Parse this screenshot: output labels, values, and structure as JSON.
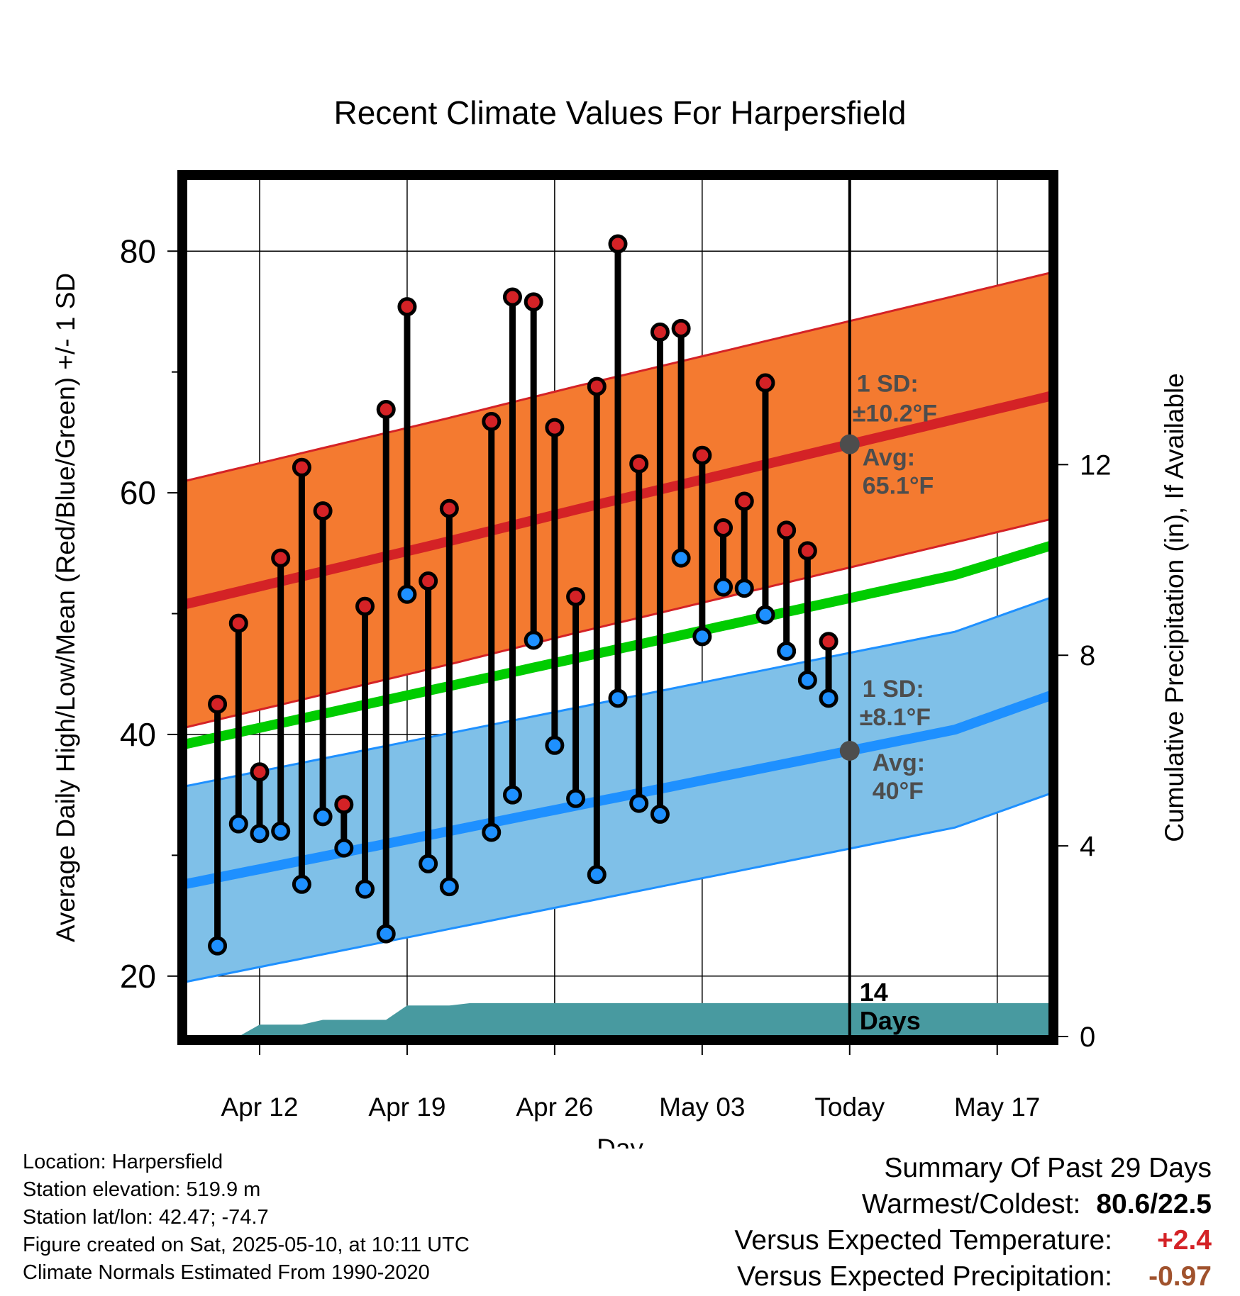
{
  "chart_data": {
    "type": "line",
    "title": "Recent Climate Values For Harpersfield",
    "xlabel": "Day",
    "ylabel": "Average Daily High/Low/Mean (Red/Blue/Green) +/- 1 SD",
    "y2label": "Cumulative Precipitation (in), If Available",
    "ylim": [
      15,
      86
    ],
    "y2lim": [
      0,
      18
    ],
    "xlim": [
      -2.5,
      38.5
    ],
    "x_ticks": [
      {
        "day": 1,
        "label": "Apr 12"
      },
      {
        "day": 8,
        "label": "Apr 19"
      },
      {
        "day": 15,
        "label": "Apr 26"
      },
      {
        "day": 22,
        "label": "May 03"
      },
      {
        "day": 29,
        "label": "Today"
      },
      {
        "day": 36,
        "label": "May 17"
      }
    ],
    "y_ticks": [
      20,
      40,
      60,
      80
    ],
    "y_minor_ticks": [
      30,
      50,
      70
    ],
    "y2_ticks": [
      0,
      4,
      8,
      12
    ],
    "grid": true,
    "today_day": 29,
    "days_label": "14 Days",
    "normals": {
      "days": [
        -2,
        4,
        10,
        16,
        22,
        28,
        34,
        38.5
      ],
      "high_avg": [
        51.0,
        53.5,
        56.0,
        58.6,
        61.1,
        63.6,
        66.1,
        68.0
      ],
      "high_sd": 10.2,
      "low_avg": [
        27.8,
        29.9,
        32.0,
        34.1,
        36.2,
        38.3,
        40.4,
        43.2
      ],
      "low_sd": 8.1,
      "mean_avg": [
        39.4,
        41.7,
        44.0,
        46.3,
        48.6,
        50.9,
        53.2,
        55.6
      ]
    },
    "series": [
      {
        "name": "High",
        "days": [
          -1,
          0,
          1,
          2,
          3,
          4,
          5,
          6,
          7,
          8,
          9,
          10,
          12,
          13,
          14,
          15,
          16,
          17,
          18,
          19,
          20,
          21,
          22,
          23,
          24,
          25,
          26,
          27,
          28
        ],
        "values": [
          42.5,
          49.2,
          36.9,
          54.6,
          62.1,
          58.5,
          34.2,
          50.6,
          66.9,
          75.4,
          52.7,
          58.7,
          65.9,
          76.2,
          75.8,
          65.4,
          51.4,
          68.8,
          80.6,
          62.4,
          73.3,
          73.6,
          63.1,
          57.1,
          59.3,
          69.1,
          56.9,
          55.2,
          47.7
        ]
      },
      {
        "name": "Low",
        "days": [
          -1,
          0,
          1,
          2,
          3,
          4,
          5,
          6,
          7,
          8,
          9,
          10,
          12,
          13,
          14,
          15,
          16,
          17,
          18,
          19,
          20,
          21,
          22,
          23,
          24,
          25,
          26,
          27,
          28
        ],
        "values": [
          22.5,
          32.6,
          31.8,
          32.0,
          27.6,
          33.2,
          30.6,
          27.2,
          23.5,
          51.6,
          29.3,
          27.4,
          31.9,
          35.0,
          47.8,
          39.1,
          34.7,
          28.4,
          43.0,
          34.3,
          33.4,
          54.6,
          48.1,
          52.2,
          52.1,
          49.9,
          46.9,
          44.5,
          43.0
        ]
      }
    ],
    "precip": {
      "days": [
        -2.5,
        0,
        1,
        3,
        4,
        7,
        8,
        10,
        11,
        38.5
      ],
      "values": [
        0,
        0,
        0.25,
        0.25,
        0.35,
        0.35,
        0.65,
        0.65,
        0.7,
        0.7
      ]
    },
    "annotations": {
      "high_sd_label": "1 SD:",
      "high_sd_value": "±10.2°F",
      "high_avg_label": "Avg:",
      "high_avg_value": "65.1°F",
      "low_sd_label": "1 SD:",
      "low_sd_value": "±8.1°F",
      "low_avg_label": "Avg:",
      "low_avg_value": "40°F"
    },
    "colors": {
      "high_band": "#f47a30",
      "high_line": "#d42226",
      "low_band": "#7fc0e8",
      "low_line": "#1e90ff",
      "mean_line": "#00cc00",
      "precip": "#489aa0",
      "high_point": "#d42226",
      "low_point": "#1e90ff",
      "annotation": "#4d4d4d"
    }
  },
  "info": {
    "location": "Location: Harpersfield",
    "elevation": "Station elevation: 519.9 m",
    "latlon": "Station lat/lon: 42.47; -74.7",
    "created": "Figure created on Sat, 2025-05-10, at 10:11 UTC",
    "normals": "Climate Normals Estimated From 1990-2020"
  },
  "summary": {
    "title": "Summary Of Past 29 Days",
    "warm_label": "Warmest/Coldest:",
    "warm_value": "80.6/22.5",
    "temp_label": "Versus Expected Temperature:",
    "temp_value": "+2.4",
    "temp_color": "#d42226",
    "precip_label": "Versus Expected Precipitation:",
    "precip_value": "-0.97",
    "precip_color": "#a0522d"
  }
}
